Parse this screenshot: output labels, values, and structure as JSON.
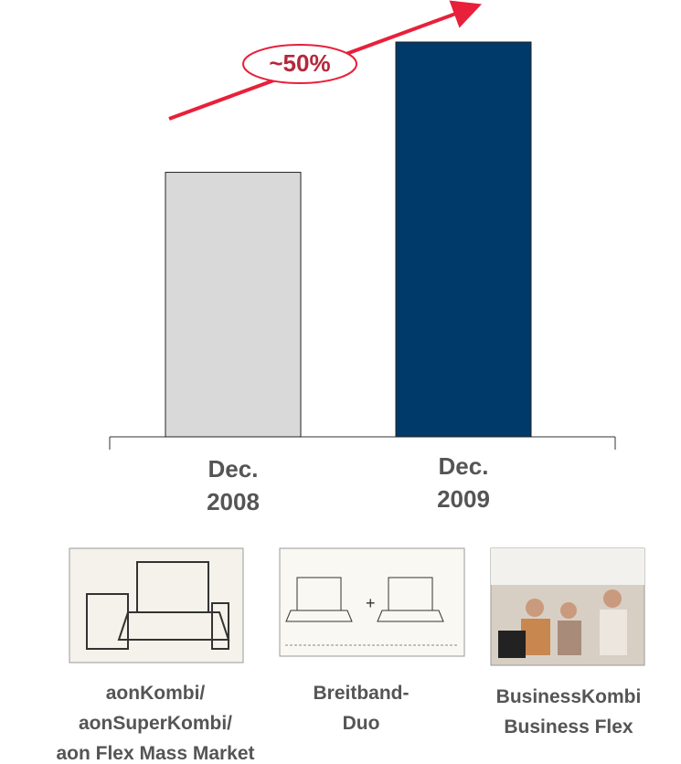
{
  "chart_data": {
    "type": "bar",
    "categories": [
      "Dec. 2008",
      "Dec. 2009"
    ],
    "values": [
      67,
      100
    ],
    "colors": [
      "#d9d9d9",
      "#003a6b"
    ],
    "ylim": [
      0,
      100
    ],
    "annotation": "~50%"
  },
  "products": [
    {
      "lines": [
        "aonKombi/",
        "aonSuperKombi/",
        "aon Flex Mass Market"
      ]
    },
    {
      "lines": [
        "Breitband-",
        "Duo"
      ]
    },
    {
      "lines": [
        "BusinessKombi",
        "Business Flex"
      ]
    }
  ]
}
